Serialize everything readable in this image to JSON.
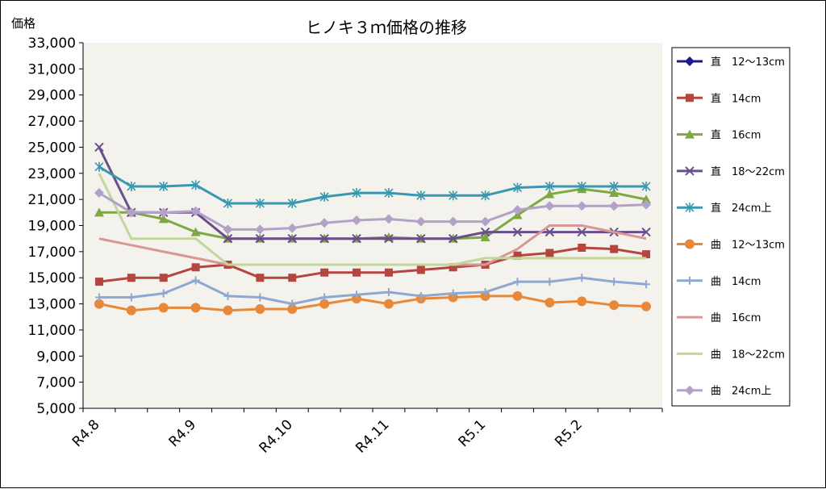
{
  "chart_data": {
    "type": "line",
    "title": "ヒノキ３ｍ価格の推移",
    "ylabel": "価格",
    "xlabel": "",
    "ylim": [
      5000,
      33000
    ],
    "yticks": [
      "5,000",
      "7,000",
      "9,000",
      "11,000",
      "13,000",
      "15,000",
      "17,000",
      "19,000",
      "21,000",
      "23,000",
      "25,000",
      "27,000",
      "29,000",
      "31,000",
      "33,000"
    ],
    "x_tick_labels": [
      {
        "index": 0,
        "label": "R4.8"
      },
      {
        "index": 3,
        "label": "R4.9"
      },
      {
        "index": 6,
        "label": "R4.10"
      },
      {
        "index": 9,
        "label": "R4.11"
      },
      {
        "index": 12,
        "label": "R5.1"
      },
      {
        "index": 15,
        "label": "R5.2"
      }
    ],
    "n_points": 18,
    "grid": "none",
    "plot_background": "#f3f2ec",
    "legend_position": "right",
    "series": [
      {
        "name": "直　12～13cm",
        "color": "#1a1a8c",
        "marker": "diamond",
        "values": [
          null,
          null,
          null,
          null,
          null,
          null,
          null,
          null,
          null,
          null,
          null,
          null,
          null,
          null,
          null,
          null,
          null,
          null
        ]
      },
      {
        "name": "直　14cm",
        "color": "#b4453f",
        "marker": "square",
        "values": [
          14700,
          15000,
          15000,
          15800,
          16000,
          15000,
          15000,
          15400,
          15400,
          15400,
          15600,
          15800,
          16000,
          16700,
          16900,
          17300,
          17200,
          16800
        ]
      },
      {
        "name": "直　16cm",
        "color": "#7fa843",
        "marker": "triangle",
        "values": [
          20000,
          20000,
          19500,
          18500,
          18000,
          18000,
          18000,
          18000,
          18000,
          18100,
          18000,
          18000,
          18100,
          19800,
          21400,
          21800,
          21500,
          21000
        ]
      },
      {
        "name": "直　18～22cm",
        "color": "#6a4d8e",
        "marker": "x",
        "values": [
          25000,
          20000,
          20000,
          20000,
          18000,
          18000,
          18000,
          18000,
          18000,
          18000,
          18000,
          18000,
          18500,
          18500,
          18500,
          18500,
          18500,
          18500
        ]
      },
      {
        "name": "直　24cm上",
        "color": "#3a97b0",
        "marker": "star",
        "values": [
          23500,
          22000,
          22000,
          22100,
          20700,
          20700,
          20700,
          21200,
          21500,
          21500,
          21300,
          21300,
          21300,
          21900,
          22000,
          22000,
          22000,
          22000
        ]
      },
      {
        "name": "曲　12～13cm",
        "color": "#e8893a",
        "marker": "circle",
        "values": [
          13000,
          12500,
          12700,
          12700,
          12500,
          12600,
          12600,
          13000,
          13400,
          13000,
          13400,
          13500,
          13600,
          13600,
          13100,
          13200,
          12900,
          12800
        ]
      },
      {
        "name": "曲　14cm",
        "color": "#8fa8d2",
        "marker": "plus",
        "values": [
          13500,
          13500,
          13800,
          14800,
          13600,
          13500,
          13000,
          13500,
          13700,
          13900,
          13600,
          13800,
          13900,
          14700,
          14700,
          15000,
          14700,
          14500
        ]
      },
      {
        "name": "曲　16cm",
        "color": "#d99694",
        "marker": "none",
        "values": [
          18000,
          17500,
          17000,
          16500,
          16000,
          16000,
          16000,
          16000,
          16000,
          16000,
          16000,
          16000,
          16000,
          17200,
          19000,
          19000,
          18500,
          18000
        ]
      },
      {
        "name": "曲　18～22cm",
        "color": "#c3d69b",
        "marker": "none",
        "values": [
          23000,
          18000,
          18000,
          18000,
          16000,
          16000,
          16000,
          16000,
          16000,
          16000,
          16000,
          16000,
          16500,
          16500,
          16500,
          16500,
          16500,
          16500
        ]
      },
      {
        "name": "曲　24cm上",
        "color": "#b3a2c7",
        "marker": "diamond",
        "values": [
          21500,
          20000,
          20000,
          20100,
          18700,
          18700,
          18800,
          19200,
          19400,
          19500,
          19300,
          19300,
          19300,
          20200,
          20500,
          20500,
          20500,
          20600
        ]
      }
    ]
  }
}
